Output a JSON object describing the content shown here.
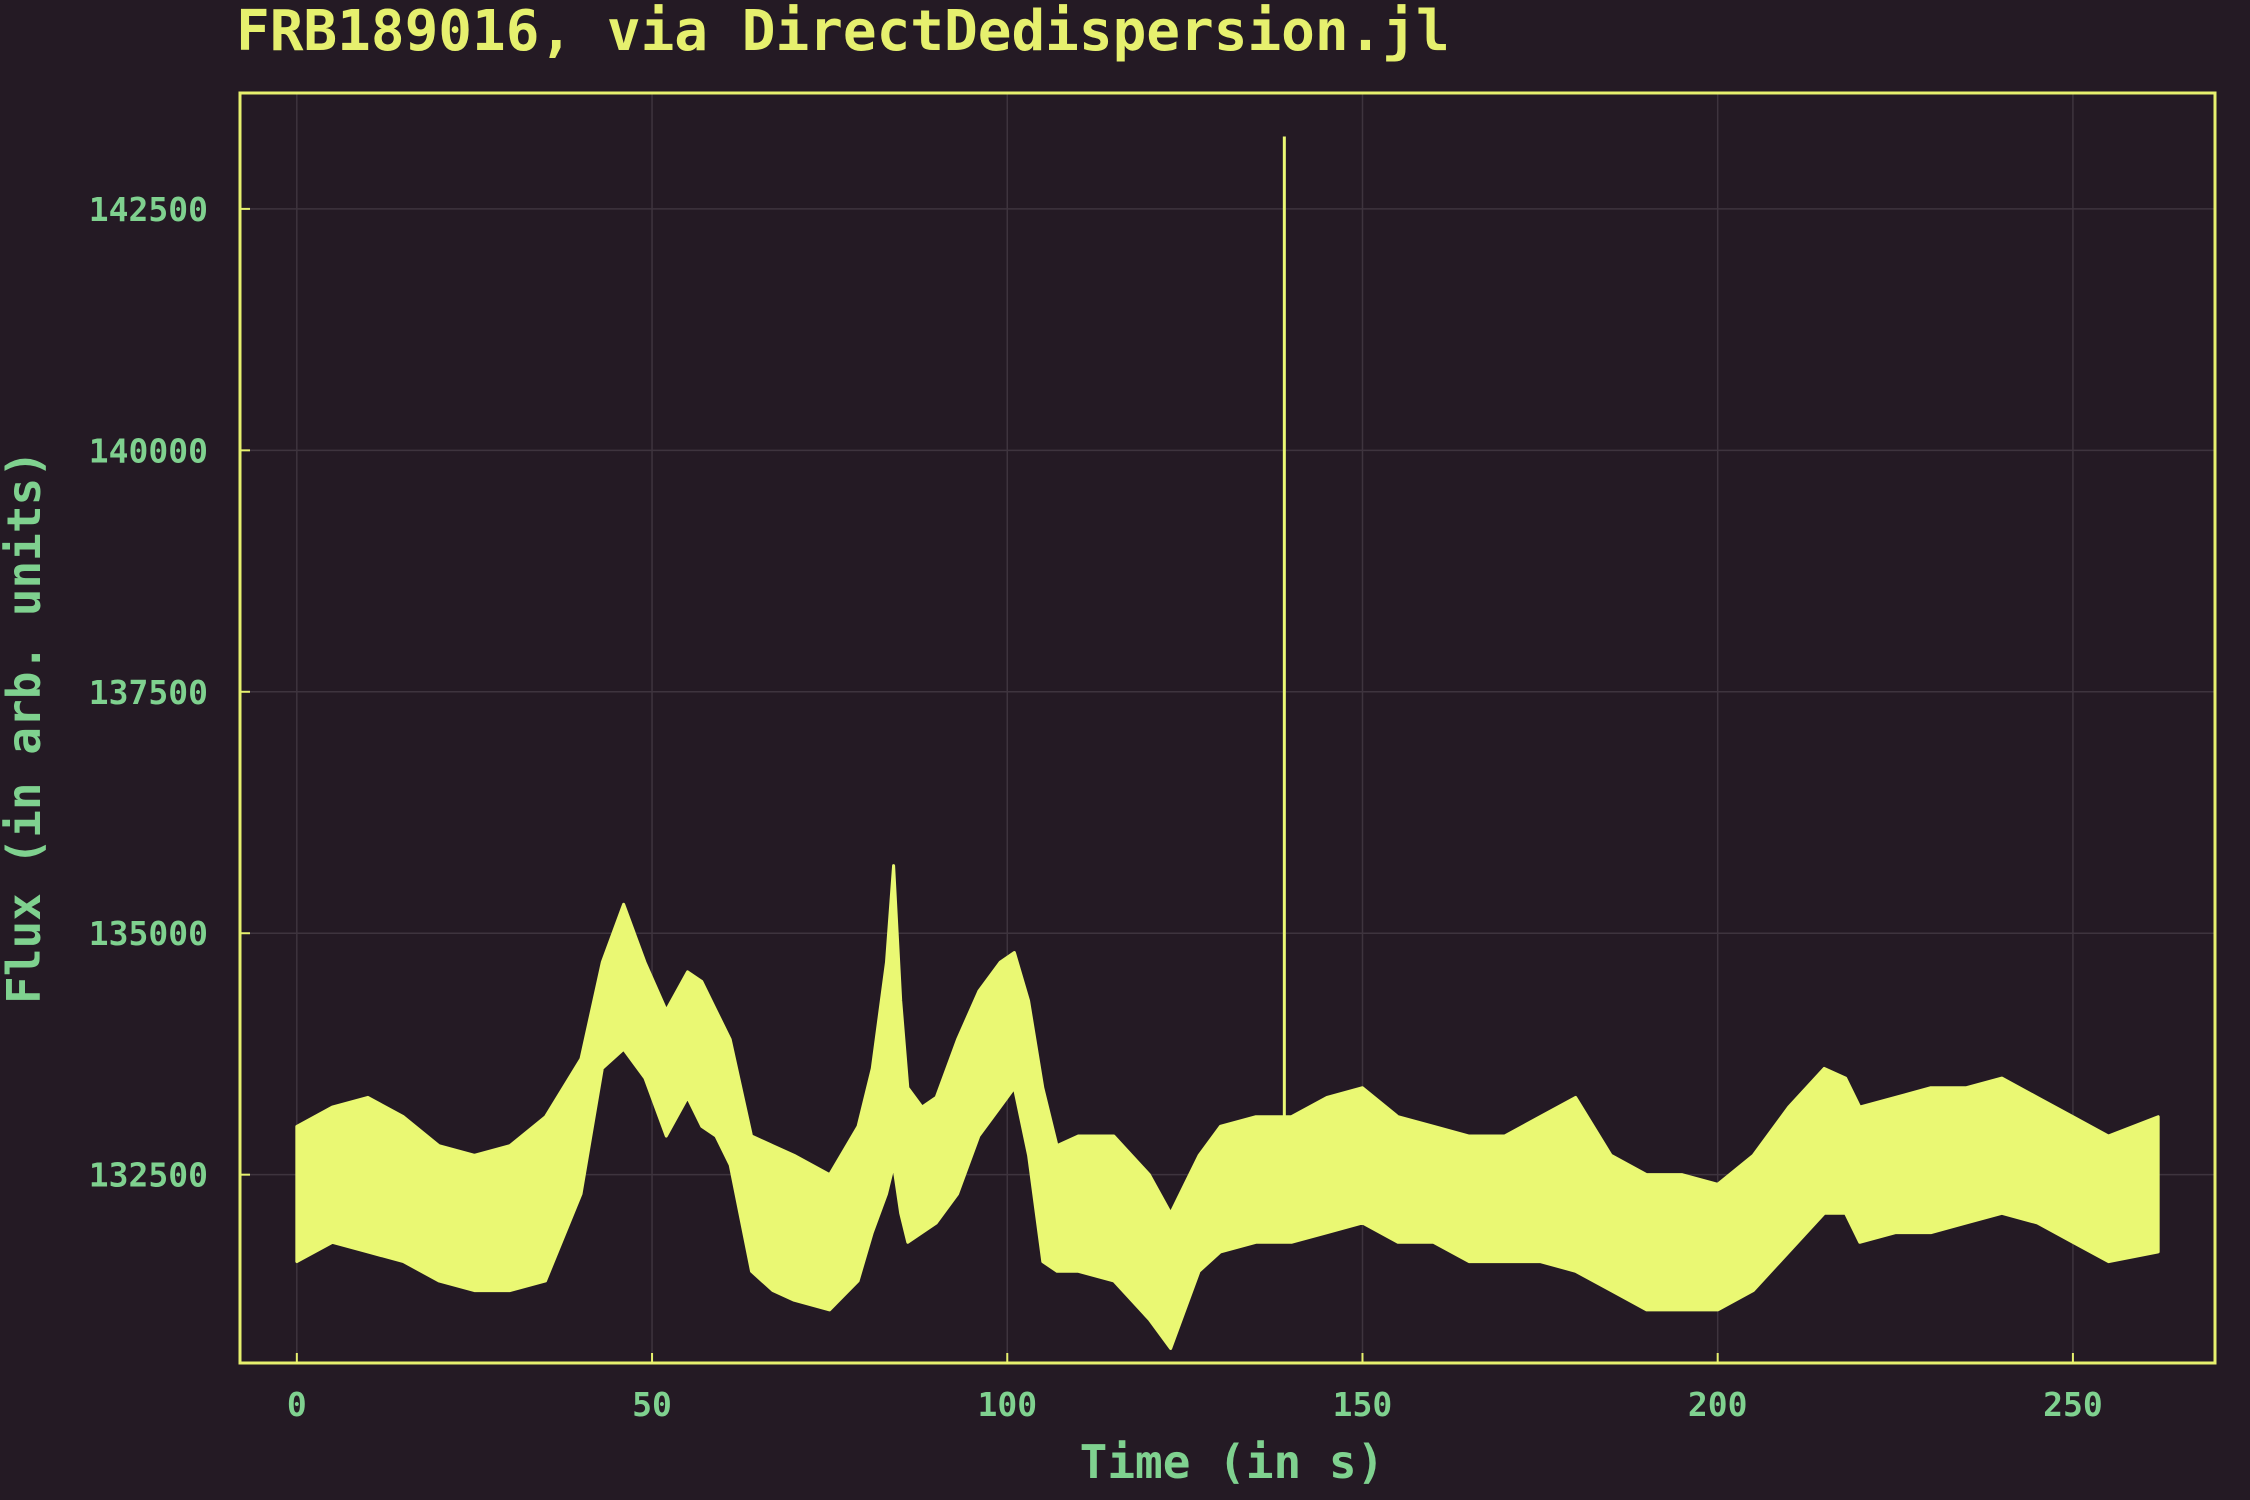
{
  "colors": {
    "background": "#241a24",
    "title": "#e6f06e",
    "frame": "#e6f06e",
    "series": "#eaf873",
    "axis_text": "#7fd18f",
    "grid": "#3e343e"
  },
  "chart_data": {
    "type": "area",
    "title": "FRB189016, via DirectDedispersion.jl",
    "xlabel": "Time (in s)",
    "ylabel": "Flux (in arb. units)",
    "xlim": [
      -8,
      270
    ],
    "ylim": [
      130550,
      143700
    ],
    "grid": true,
    "legend": "none",
    "xticks": [
      0,
      50,
      100,
      150,
      200,
      250
    ],
    "xtick_labels": [
      "0",
      "50",
      "100",
      "150",
      "200",
      "250"
    ],
    "yticks": [
      132500,
      135000,
      137500,
      140000,
      142500
    ],
    "ytick_labels": [
      "132500",
      "135000",
      "137500",
      "140000",
      "142500"
    ],
    "series": [
      {
        "band_x": [
          0,
          5,
          10,
          15,
          20,
          25,
          30,
          35,
          40,
          43,
          46,
          49,
          52,
          55,
          57,
          59,
          61,
          64,
          67,
          70,
          75,
          79,
          81,
          83,
          84,
          85,
          86,
          88,
          90,
          93,
          96,
          99,
          101,
          103,
          105,
          107,
          110,
          115,
          120,
          123,
          125,
          127,
          130,
          135,
          140,
          145,
          150,
          155,
          160,
          165,
          170,
          175,
          180,
          185,
          190,
          195,
          200,
          205,
          210,
          215,
          218,
          220,
          225,
          230,
          235,
          240,
          245,
          250,
          255,
          262
        ],
        "band_upper": [
          133000,
          133200,
          133300,
          133100,
          132800,
          132700,
          132800,
          133100,
          133700,
          134700,
          135300,
          134700,
          134200,
          134600,
          134500,
          134200,
          133900,
          132900,
          132800,
          132700,
          132500,
          133000,
          133600,
          134700,
          135700,
          134300,
          133400,
          133200,
          133300,
          133900,
          134400,
          134700,
          134800,
          134300,
          133400,
          132800,
          132900,
          132900,
          132500,
          132100,
          132400,
          132700,
          133000,
          133100,
          133100,
          133300,
          133400,
          133100,
          133000,
          132900,
          132900,
          133100,
          133300,
          132700,
          132500,
          132500,
          132400,
          132700,
          133200,
          133600,
          133500,
          133200,
          133300,
          133400,
          133400,
          133500,
          133300,
          133100,
          132900,
          133100
        ],
        "band_lower": [
          131600,
          131800,
          131700,
          131600,
          131400,
          131300,
          131300,
          131400,
          132300,
          133600,
          133800,
          133500,
          132900,
          133300,
          133000,
          132900,
          132600,
          131500,
          131300,
          131200,
          131100,
          131400,
          131900,
          132300,
          132600,
          132100,
          131800,
          131900,
          132000,
          132300,
          132900,
          133200,
          133400,
          132700,
          131600,
          131500,
          131500,
          131400,
          131000,
          130700,
          131100,
          131500,
          131700,
          131800,
          131800,
          131900,
          132000,
          131800,
          131800,
          131600,
          131600,
          131600,
          131500,
          131300,
          131100,
          131100,
          131100,
          131300,
          131700,
          132100,
          132100,
          131800,
          131900,
          131900,
          132000,
          132100,
          132000,
          131800,
          131600,
          131700
        ],
        "spike": {
          "x": 139,
          "y": 143250
        }
      }
    ]
  }
}
